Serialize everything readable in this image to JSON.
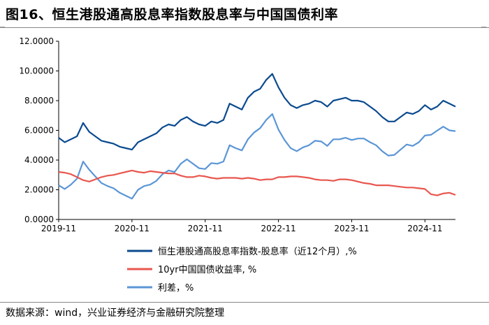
{
  "header": {
    "title": "图16、恒生港股通高股息率指数股息率与中国国债利率"
  },
  "footer": {
    "source": "数据来源：wind，兴业证券经济与金融研究院整理"
  },
  "colors": {
    "div_yield": "#0b4a8f",
    "bond": "#e8574f",
    "spread": "#5b96d6"
  },
  "chart_data": {
    "type": "line",
    "ylim": [
      0,
      12
    ],
    "y_ticks": [
      "0.0000",
      "2.0000",
      "4.0000",
      "6.0000",
      "8.0000",
      "10.0000",
      "12.0000"
    ],
    "x_ticks": [
      "2019-11",
      "2020-11",
      "2021-11",
      "2022-11",
      "2023-11",
      "2024-11"
    ],
    "xlim": [
      "2019-11",
      "2025-04"
    ],
    "legend_position": "bottom",
    "series": [
      {
        "name": "恒生港股通高股息率指数-股息率（近12个月）,%",
        "color": "#0b4a8f",
        "points": [
          [
            "2019-11",
            5.5
          ],
          [
            "2019-12",
            5.2
          ],
          [
            "2020-01",
            5.4
          ],
          [
            "2020-02",
            5.6
          ],
          [
            "2020-03",
            6.5
          ],
          [
            "2020-04",
            5.9
          ],
          [
            "2020-05",
            5.6
          ],
          [
            "2020-06",
            5.3
          ],
          [
            "2020-07",
            5.2
          ],
          [
            "2020-08",
            5.1
          ],
          [
            "2020-09",
            4.9
          ],
          [
            "2020-10",
            4.8
          ],
          [
            "2020-11",
            4.7
          ],
          [
            "2020-12",
            5.2
          ],
          [
            "2021-01",
            5.4
          ],
          [
            "2021-02",
            5.6
          ],
          [
            "2021-03",
            5.8
          ],
          [
            "2021-04",
            6.2
          ],
          [
            "2021-05",
            6.4
          ],
          [
            "2021-06",
            6.3
          ],
          [
            "2021-07",
            6.7
          ],
          [
            "2021-08",
            6.9
          ],
          [
            "2021-09",
            6.6
          ],
          [
            "2021-10",
            6.4
          ],
          [
            "2021-11",
            6.3
          ],
          [
            "2021-12",
            6.6
          ],
          [
            "2022-01",
            6.5
          ],
          [
            "2022-02",
            6.7
          ],
          [
            "2022-03",
            7.8
          ],
          [
            "2022-04",
            7.6
          ],
          [
            "2022-05",
            7.4
          ],
          [
            "2022-06",
            8.2
          ],
          [
            "2022-07",
            8.6
          ],
          [
            "2022-08",
            8.8
          ],
          [
            "2022-09",
            9.4
          ],
          [
            "2022-10",
            9.8
          ],
          [
            "2022-11",
            8.9
          ],
          [
            "2022-12",
            8.2
          ],
          [
            "2023-01",
            7.7
          ],
          [
            "2023-02",
            7.5
          ],
          [
            "2023-03",
            7.7
          ],
          [
            "2023-04",
            7.8
          ],
          [
            "2023-05",
            8.0
          ],
          [
            "2023-06",
            7.9
          ],
          [
            "2023-07",
            7.6
          ],
          [
            "2023-08",
            8.0
          ],
          [
            "2023-09",
            8.1
          ],
          [
            "2023-10",
            8.2
          ],
          [
            "2023-11",
            8.0
          ],
          [
            "2023-12",
            8.0
          ],
          [
            "2024-01",
            7.9
          ],
          [
            "2024-02",
            7.6
          ],
          [
            "2024-03",
            7.3
          ],
          [
            "2024-04",
            6.9
          ],
          [
            "2024-05",
            6.6
          ],
          [
            "2024-06",
            6.6
          ],
          [
            "2024-07",
            6.9
          ],
          [
            "2024-08",
            7.2
          ],
          [
            "2024-09",
            7.1
          ],
          [
            "2024-10",
            7.3
          ],
          [
            "2024-11",
            7.7
          ],
          [
            "2024-12",
            7.4
          ],
          [
            "2025-01",
            7.6
          ],
          [
            "2025-02",
            8.0
          ],
          [
            "2025-03",
            7.8
          ],
          [
            "2025-04",
            7.6
          ]
        ]
      },
      {
        "name": "10yr中国国债收益率, %",
        "color": "#e8574f",
        "points": [
          [
            "2019-11",
            3.2
          ],
          [
            "2019-12",
            3.15
          ],
          [
            "2020-01",
            3.05
          ],
          [
            "2020-02",
            2.85
          ],
          [
            "2020-03",
            2.65
          ],
          [
            "2020-04",
            2.55
          ],
          [
            "2020-05",
            2.7
          ],
          [
            "2020-06",
            2.85
          ],
          [
            "2020-07",
            2.95
          ],
          [
            "2020-08",
            3.0
          ],
          [
            "2020-09",
            3.1
          ],
          [
            "2020-10",
            3.2
          ],
          [
            "2020-11",
            3.3
          ],
          [
            "2020-12",
            3.2
          ],
          [
            "2021-01",
            3.15
          ],
          [
            "2021-02",
            3.25
          ],
          [
            "2021-03",
            3.2
          ],
          [
            "2021-04",
            3.15
          ],
          [
            "2021-05",
            3.1
          ],
          [
            "2021-06",
            3.1
          ],
          [
            "2021-07",
            2.95
          ],
          [
            "2021-08",
            2.85
          ],
          [
            "2021-09",
            2.85
          ],
          [
            "2021-10",
            2.95
          ],
          [
            "2021-11",
            2.9
          ],
          [
            "2021-12",
            2.8
          ],
          [
            "2022-01",
            2.75
          ],
          [
            "2022-02",
            2.8
          ],
          [
            "2022-03",
            2.8
          ],
          [
            "2022-04",
            2.8
          ],
          [
            "2022-05",
            2.75
          ],
          [
            "2022-06",
            2.8
          ],
          [
            "2022-07",
            2.75
          ],
          [
            "2022-08",
            2.65
          ],
          [
            "2022-09",
            2.7
          ],
          [
            "2022-10",
            2.7
          ],
          [
            "2022-11",
            2.85
          ],
          [
            "2022-12",
            2.85
          ],
          [
            "2023-01",
            2.9
          ],
          [
            "2023-02",
            2.9
          ],
          [
            "2023-03",
            2.85
          ],
          [
            "2023-04",
            2.8
          ],
          [
            "2023-05",
            2.7
          ],
          [
            "2023-06",
            2.65
          ],
          [
            "2023-07",
            2.65
          ],
          [
            "2023-08",
            2.6
          ],
          [
            "2023-09",
            2.7
          ],
          [
            "2023-10",
            2.7
          ],
          [
            "2023-11",
            2.65
          ],
          [
            "2023-12",
            2.55
          ],
          [
            "2024-01",
            2.45
          ],
          [
            "2024-02",
            2.4
          ],
          [
            "2024-03",
            2.3
          ],
          [
            "2024-04",
            2.3
          ],
          [
            "2024-05",
            2.3
          ],
          [
            "2024-06",
            2.25
          ],
          [
            "2024-07",
            2.2
          ],
          [
            "2024-08",
            2.15
          ],
          [
            "2024-09",
            2.15
          ],
          [
            "2024-10",
            2.1
          ],
          [
            "2024-11",
            2.05
          ],
          [
            "2024-12",
            1.7
          ],
          [
            "2025-01",
            1.62
          ],
          [
            "2025-02",
            1.75
          ],
          [
            "2025-03",
            1.8
          ],
          [
            "2025-04",
            1.65
          ]
        ]
      },
      {
        "name": "利差，%",
        "color": "#5b96d6",
        "points": [
          [
            "2019-11",
            2.3
          ],
          [
            "2019-12",
            2.05
          ],
          [
            "2020-01",
            2.35
          ],
          [
            "2020-02",
            2.75
          ],
          [
            "2020-03",
            3.9
          ],
          [
            "2020-04",
            3.35
          ],
          [
            "2020-05",
            2.9
          ],
          [
            "2020-06",
            2.45
          ],
          [
            "2020-07",
            2.25
          ],
          [
            "2020-08",
            2.1
          ],
          [
            "2020-09",
            1.8
          ],
          [
            "2020-10",
            1.6
          ],
          [
            "2020-11",
            1.4
          ],
          [
            "2020-12",
            2.0
          ],
          [
            "2021-01",
            2.25
          ],
          [
            "2021-02",
            2.35
          ],
          [
            "2021-03",
            2.6
          ],
          [
            "2021-04",
            3.05
          ],
          [
            "2021-05",
            3.3
          ],
          [
            "2021-06",
            3.2
          ],
          [
            "2021-07",
            3.75
          ],
          [
            "2021-08",
            4.05
          ],
          [
            "2021-09",
            3.75
          ],
          [
            "2021-10",
            3.45
          ],
          [
            "2021-11",
            3.4
          ],
          [
            "2021-12",
            3.8
          ],
          [
            "2022-01",
            3.75
          ],
          [
            "2022-02",
            3.9
          ],
          [
            "2022-03",
            5.0
          ],
          [
            "2022-04",
            4.8
          ],
          [
            "2022-05",
            4.65
          ],
          [
            "2022-06",
            5.4
          ],
          [
            "2022-07",
            5.85
          ],
          [
            "2022-08",
            6.15
          ],
          [
            "2022-09",
            6.7
          ],
          [
            "2022-10",
            7.1
          ],
          [
            "2022-11",
            6.05
          ],
          [
            "2022-12",
            5.35
          ],
          [
            "2023-01",
            4.8
          ],
          [
            "2023-02",
            4.6
          ],
          [
            "2023-03",
            4.85
          ],
          [
            "2023-04",
            5.0
          ],
          [
            "2023-05",
            5.3
          ],
          [
            "2023-06",
            5.25
          ],
          [
            "2023-07",
            4.95
          ],
          [
            "2023-08",
            5.4
          ],
          [
            "2023-09",
            5.4
          ],
          [
            "2023-10",
            5.5
          ],
          [
            "2023-11",
            5.35
          ],
          [
            "2023-12",
            5.45
          ],
          [
            "2024-01",
            5.45
          ],
          [
            "2024-02",
            5.2
          ],
          [
            "2024-03",
            5.0
          ],
          [
            "2024-04",
            4.6
          ],
          [
            "2024-05",
            4.3
          ],
          [
            "2024-06",
            4.35
          ],
          [
            "2024-07",
            4.7
          ],
          [
            "2024-08",
            5.05
          ],
          [
            "2024-09",
            4.95
          ],
          [
            "2024-10",
            5.2
          ],
          [
            "2024-11",
            5.65
          ],
          [
            "2024-12",
            5.7
          ],
          [
            "2025-01",
            5.98
          ],
          [
            "2025-02",
            6.25
          ],
          [
            "2025-03",
            6.0
          ],
          [
            "2025-04",
            5.95
          ]
        ]
      }
    ]
  }
}
